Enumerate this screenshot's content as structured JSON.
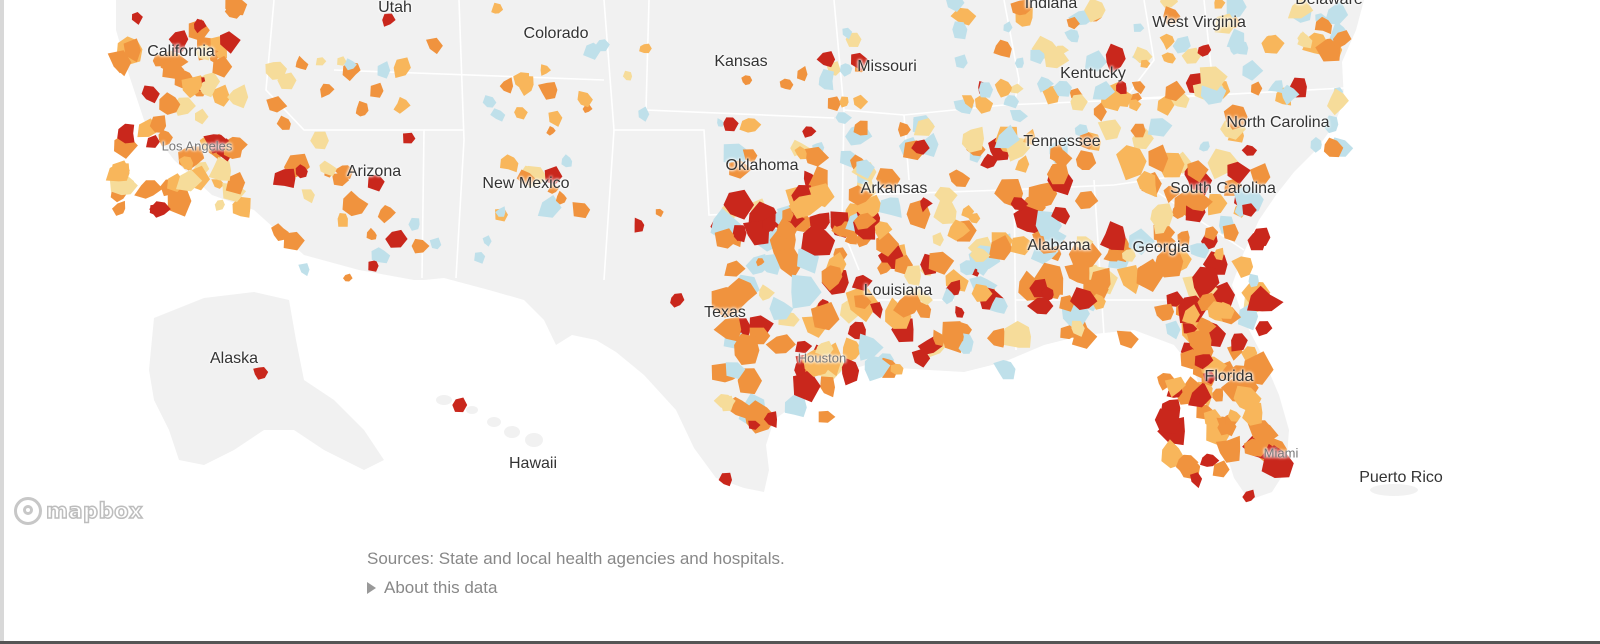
{
  "map": {
    "colors": {
      "land": "#f1f1f1",
      "border": "#ffffff",
      "water": "#ffffff",
      "very_high": "#c9271c",
      "high": "#f0933e",
      "elevated": "#f8b65b",
      "moderate": "#f6dc9a",
      "low": "#bfe0ea"
    },
    "state_labels": [
      {
        "name": "Utah",
        "id": "utah"
      },
      {
        "name": "Colorado",
        "id": "colorado"
      },
      {
        "name": "California",
        "id": "california"
      },
      {
        "name": "Kansas",
        "id": "kansas"
      },
      {
        "name": "Missouri",
        "id": "missouri"
      },
      {
        "name": "Indiana",
        "id": "indiana"
      },
      {
        "name": "West Virginia",
        "id": "west-virginia"
      },
      {
        "name": "Delaware",
        "id": "delaware"
      },
      {
        "name": "Kentucky",
        "id": "kentucky"
      },
      {
        "name": "Tennessee",
        "id": "tennessee"
      },
      {
        "name": "North Carolina",
        "id": "north-carolina"
      },
      {
        "name": "Oklahoma",
        "id": "oklahoma"
      },
      {
        "name": "Arkansas",
        "id": "arkansas"
      },
      {
        "name": "South Carolina",
        "id": "south-carolina"
      },
      {
        "name": "Arizona",
        "id": "arizona"
      },
      {
        "name": "New Mexico",
        "id": "new-mexico"
      },
      {
        "name": "Alabama",
        "id": "alabama"
      },
      {
        "name": "Georgia",
        "id": "georgia"
      },
      {
        "name": "Louisiana",
        "id": "louisiana"
      },
      {
        "name": "Texas",
        "id": "texas"
      },
      {
        "name": "Florida",
        "id": "florida"
      },
      {
        "name": "Alaska",
        "id": "alaska"
      },
      {
        "name": "Hawaii",
        "id": "hawaii"
      },
      {
        "name": "Puerto Rico",
        "id": "puerto-rico"
      }
    ],
    "city_labels": [
      {
        "name": "Los Angeles",
        "id": "los-angeles"
      },
      {
        "name": "Houston",
        "id": "houston"
      },
      {
        "name": "Miami",
        "id": "miami"
      }
    ],
    "attribution": "mapbox"
  },
  "footer": {
    "sources": "Sources: State and local health agencies and hospitals.",
    "about": "About this data"
  }
}
